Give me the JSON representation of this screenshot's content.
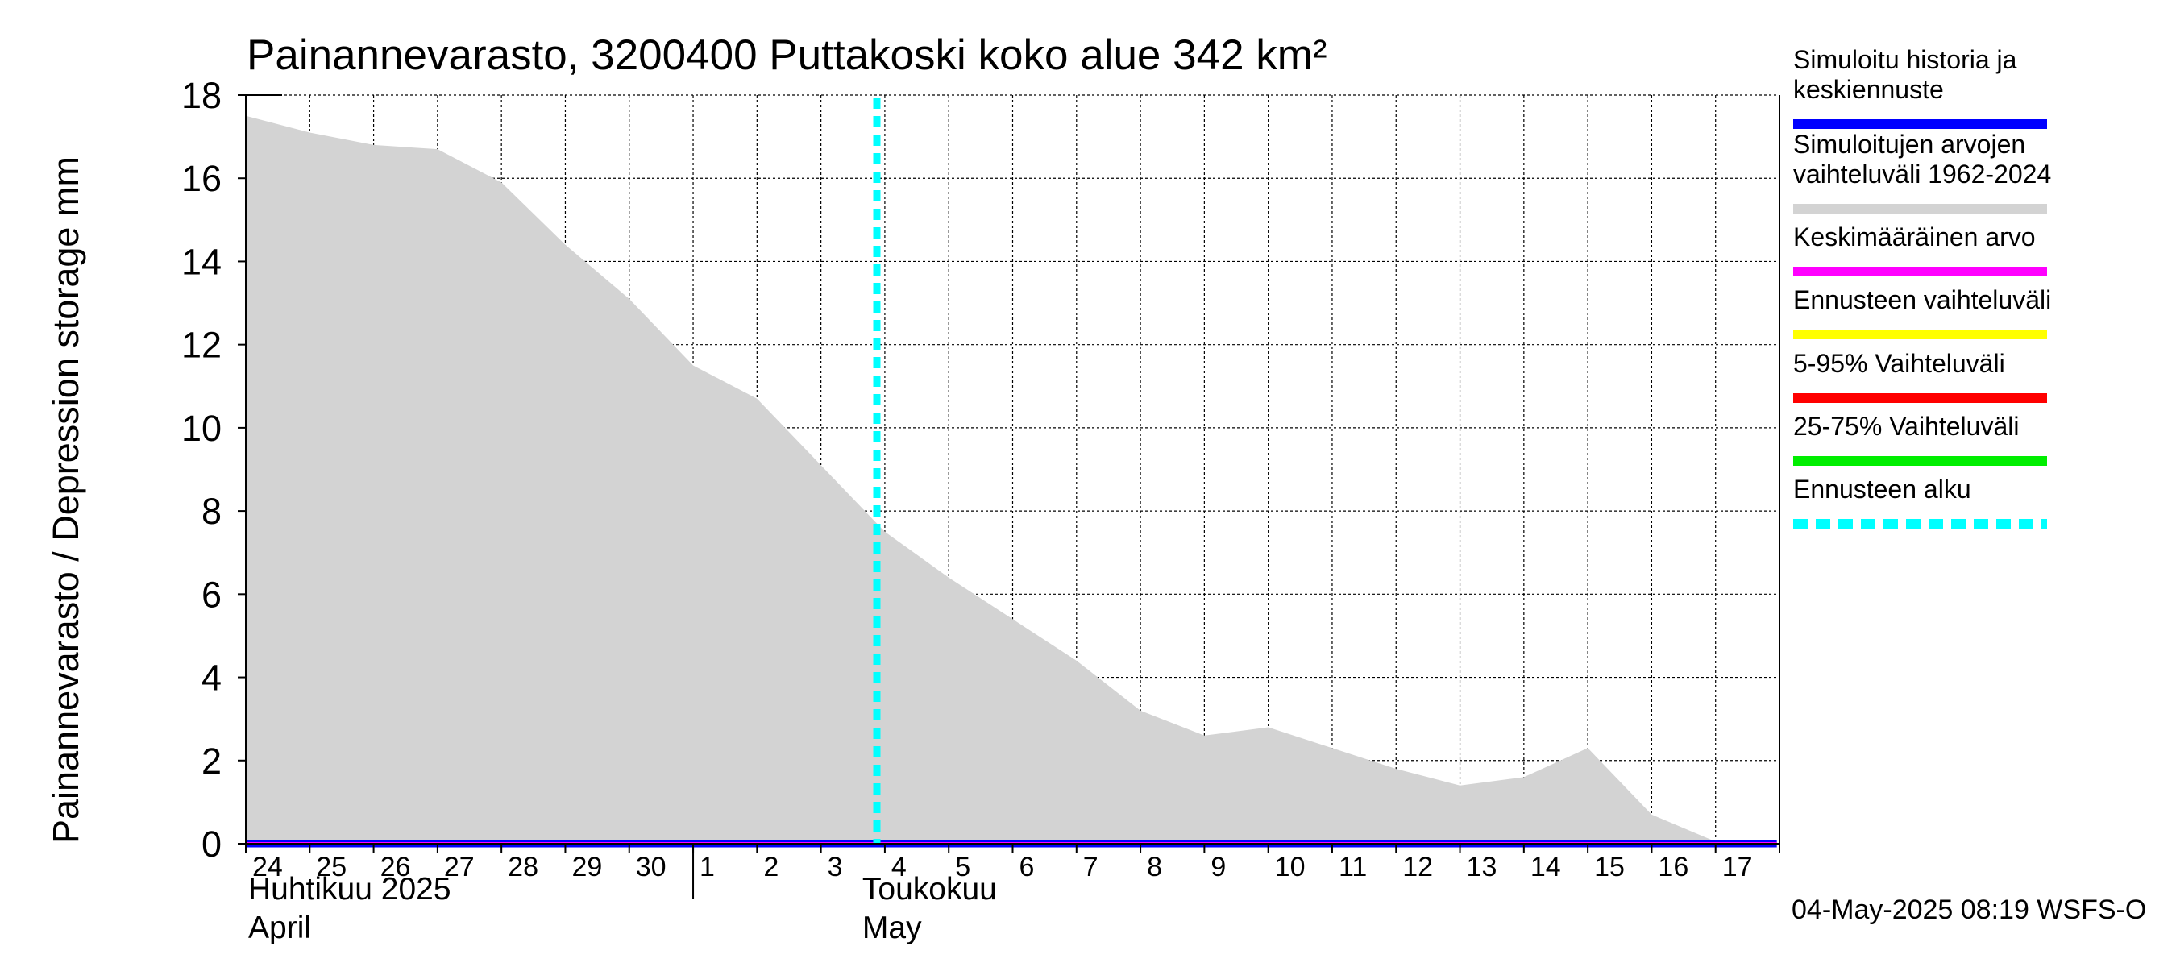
{
  "chart_data": {
    "type": "area",
    "title": "Painannevarasto, 3200400 Puttakoski koko alue 342 km²",
    "ylabel": "Painannevarasto / Depression storage    mm",
    "ylim": [
      0,
      18
    ],
    "yticks": [
      0,
      2,
      4,
      6,
      8,
      10,
      12,
      14,
      16,
      18
    ],
    "x_dates": [
      "2025-04-24",
      "2025-04-25",
      "2025-04-26",
      "2025-04-27",
      "2025-04-28",
      "2025-04-29",
      "2025-04-30",
      "2025-05-01",
      "2025-05-02",
      "2025-05-03",
      "2025-05-04",
      "2025-05-05",
      "2025-05-06",
      "2025-05-07",
      "2025-05-08",
      "2025-05-09",
      "2025-05-10",
      "2025-05-11",
      "2025-05-12",
      "2025-05-13",
      "2025-05-14",
      "2025-05-15",
      "2025-05-16",
      "2025-05-17"
    ],
    "xtick_labels": [
      "24",
      "25",
      "26",
      "27",
      "28",
      "29",
      "30",
      "1",
      "2",
      "3",
      "4",
      "5",
      "6",
      "7",
      "8",
      "9",
      "10",
      "11",
      "12",
      "13",
      "14",
      "15",
      "16",
      "17"
    ],
    "month_labels": [
      {
        "fi": "Huhtikuu  2025",
        "en": "April"
      },
      {
        "fi": "Toukokuu",
        "en": "May"
      }
    ],
    "grid": true,
    "series": [
      {
        "name": "Simuloitujen arvojen vaihteluväli 1962-2024",
        "role": "range_upper",
        "color": "#d3d3d3",
        "x": [
          "2025-04-24 00:00",
          "2025-04-25 00:00",
          "2025-04-26 00:00",
          "2025-04-27 00:00",
          "2025-04-28 00:00",
          "2025-04-29 00:00",
          "2025-04-30 00:00",
          "2025-05-01 00:00",
          "2025-05-02 00:00",
          "2025-05-03 00:00",
          "2025-05-04 00:00",
          "2025-05-05 00:00",
          "2025-05-06 00:00",
          "2025-05-07 00:00",
          "2025-05-08 00:00",
          "2025-05-09 00:00",
          "2025-05-10 00:00",
          "2025-05-11 00:00",
          "2025-05-12 00:00",
          "2025-05-13 00:00",
          "2025-05-14 00:00",
          "2025-05-15 00:00",
          "2025-05-16 00:00",
          "2025-05-17 00:00",
          "2025-05-17 23:00"
        ],
        "values": [
          17.5,
          17.1,
          16.8,
          16.7,
          15.9,
          14.4,
          13.1,
          11.5,
          10.7,
          9.1,
          7.5,
          6.4,
          5.4,
          4.4,
          3.2,
          2.6,
          2.8,
          2.3,
          1.8,
          1.4,
          1.6,
          2.3,
          0.7,
          0.05,
          0.0
        ]
      },
      {
        "name": "Simuloitu historia ja keskiennuste",
        "color": "#0000ff",
        "x": [
          "2025-04-24 00:00",
          "2025-05-17 23:00"
        ],
        "values": [
          0,
          0
        ]
      },
      {
        "name": "Keskimääräinen arvo",
        "color": "#ff00ff",
        "x": [
          "2025-04-24 00:00",
          "2025-05-17 23:00"
        ],
        "values": [
          0,
          0
        ]
      }
    ],
    "forecast_start": "2025-05-03 21:00",
    "legend": {
      "placement": "right",
      "entries": [
        {
          "label_lines": [
            "Simuloitu historia ja",
            "keskiennuste"
          ],
          "color": "#0000ff",
          "style": "solid"
        },
        {
          "label_lines": [
            "Simuloitujen arvojen",
            "vaihteluväli 1962-2024"
          ],
          "color": "#d3d3d3",
          "style": "solid"
        },
        {
          "label_lines": [
            "Keskimääräinen arvo"
          ],
          "color": "#ff00ff",
          "style": "solid"
        },
        {
          "label_lines": [
            "Ennusteen vaihteluväli"
          ],
          "color": "#ffff00",
          "style": "solid"
        },
        {
          "label_lines": [
            "5-95% Vaihteluväli"
          ],
          "color": "#ff0000",
          "style": "solid"
        },
        {
          "label_lines": [
            "25-75% Vaihteluväli"
          ],
          "color": "#00ee00",
          "style": "solid"
        },
        {
          "label_lines": [
            "Ennusteen alku"
          ],
          "color": "#00ffff",
          "style": "dashed"
        }
      ]
    },
    "footer": "04-May-2025 08:19 WSFS-O"
  }
}
